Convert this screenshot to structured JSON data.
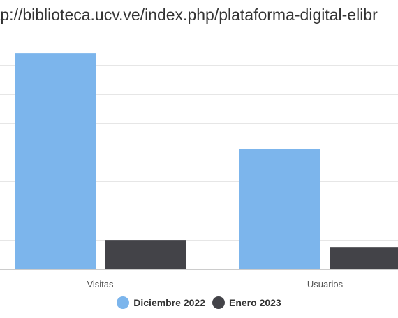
{
  "chart_data": {
    "type": "bar",
    "title": "tp://biblioteca.ucv.ve/index.php/plataforma-digital-elibr",
    "categories": [
      "Visitas",
      "Usuarios"
    ],
    "series": [
      {
        "name": "Diciembre 2022",
        "color": "#7cb5ec",
        "values": [
          3700,
          2060
        ]
      },
      {
        "name": "Enero 2023",
        "color": "#434348",
        "values": [
          500,
          380
        ]
      }
    ],
    "ylim": [
      0,
      4000
    ],
    "grid": true,
    "legend_position": "bottom-center"
  }
}
